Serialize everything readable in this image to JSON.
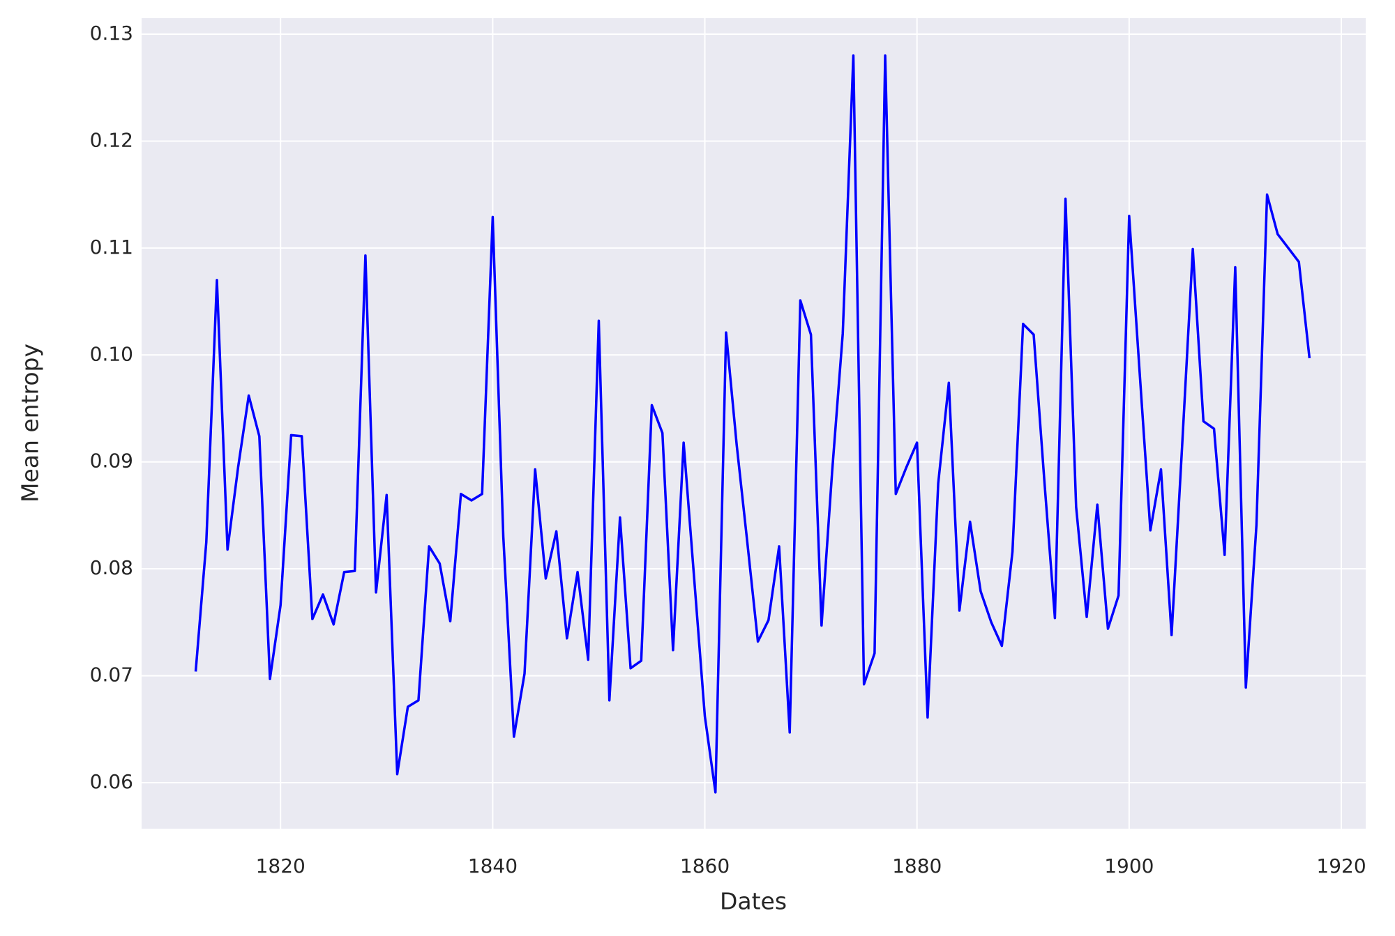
{
  "chart_data": {
    "type": "line",
    "x_label": "Dates",
    "y_label": "Mean entropy",
    "x": [
      1812,
      1813,
      1814,
      1815,
      1816,
      1817,
      1818,
      1819,
      1820,
      1821,
      1822,
      1823,
      1824,
      1825,
      1826,
      1827,
      1828,
      1829,
      1830,
      1831,
      1832,
      1833,
      1834,
      1835,
      1836,
      1837,
      1838,
      1839,
      1840,
      1841,
      1842,
      1843,
      1844,
      1845,
      1846,
      1847,
      1848,
      1849,
      1850,
      1851,
      1852,
      1853,
      1854,
      1855,
      1856,
      1857,
      1858,
      1859,
      1860,
      1861,
      1862,
      1863,
      1864,
      1865,
      1866,
      1867,
      1868,
      1869,
      1870,
      1871,
      1872,
      1873,
      1874,
      1875,
      1876,
      1877,
      1878,
      1879,
      1880,
      1881,
      1882,
      1883,
      1884,
      1885,
      1886,
      1887,
      1888,
      1889,
      1890,
      1891,
      1892,
      1893,
      1894,
      1895,
      1896,
      1897,
      1898,
      1899,
      1900,
      1901,
      1902,
      1903,
      1904,
      1905,
      1906,
      1907,
      1908,
      1909,
      1910,
      1911,
      1912,
      1913,
      1914,
      1915,
      1916,
      1917
    ],
    "values": [
      0.0704,
      0.0825,
      0.107,
      0.0818,
      0.0895,
      0.0962,
      0.0924,
      0.0697,
      0.0766,
      0.0925,
      0.0924,
      0.0753,
      0.0776,
      0.0748,
      0.0797,
      0.0798,
      0.1093,
      0.0778,
      0.0869,
      0.0608,
      0.0671,
      0.0677,
      0.0821,
      0.0805,
      0.0751,
      0.087,
      0.0864,
      0.087,
      0.1129,
      0.083,
      0.0643,
      0.0702,
      0.0893,
      0.0791,
      0.0835,
      0.0735,
      0.0797,
      0.0715,
      0.1032,
      0.0677,
      0.0848,
      0.0707,
      0.0714,
      0.0953,
      0.0927,
      0.0724,
      0.0918,
      0.079,
      0.0662,
      0.0591,
      0.1021,
      0.0916,
      0.0825,
      0.0732,
      0.0752,
      0.0821,
      0.0647,
      0.1051,
      0.1019,
      0.0747,
      0.0891,
      0.102,
      0.128,
      0.0692,
      0.0721,
      0.128,
      0.087,
      0.0895,
      0.0918,
      0.0661,
      0.088,
      0.0974,
      0.0761,
      0.0844,
      0.0779,
      0.075,
      0.0728,
      0.0816,
      0.1029,
      0.1019,
      0.0883,
      0.0754,
      0.1146,
      0.0858,
      0.0755,
      0.086,
      0.0744,
      0.0775,
      0.113,
      0.0982,
      0.0836,
      0.0893,
      0.0738,
      0.0916,
      0.1099,
      0.0938,
      0.0931,
      0.0813,
      0.1082,
      0.0689,
      0.0841,
      0.115,
      0.1113,
      0.11,
      0.1087,
      0.0997
    ],
    "color": "#0000ff",
    "xlim": [
      1806.9,
      1922.3
    ],
    "xticks": [
      1820,
      1840,
      1860,
      1880,
      1900,
      1920
    ],
    "ylim": [
      0.0557,
      0.1315
    ],
    "yticks": [
      0.06,
      0.07,
      0.08,
      0.09,
      {
        "value": 0.1,
        "label": "0.10"
      },
      0.11,
      0.12,
      0.13
    ],
    "grid": true
  }
}
